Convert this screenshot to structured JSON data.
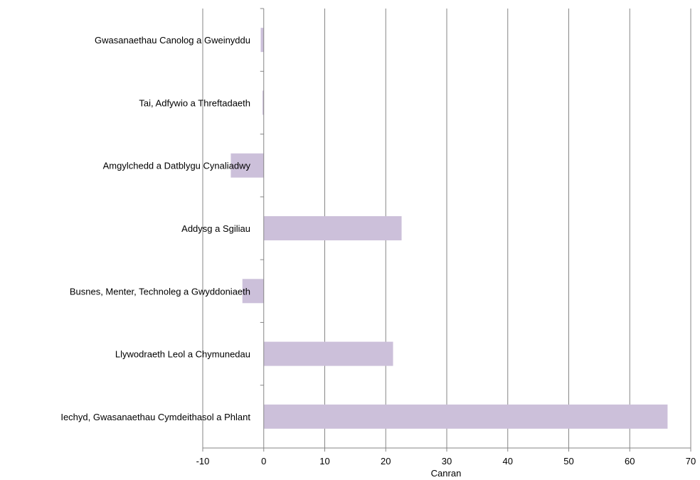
{
  "chart_data": {
    "type": "bar",
    "orientation": "horizontal",
    "categories": [
      "Gwasanaethau Canolog a Gweinyddu",
      "Tai, Adfywio a Threftadaeth",
      "Amgylchedd a Datblygu Cynaliadwy",
      "Addysg a Sgiliau",
      "Busnes, Menter, Technoleg a Gwyddoniaeth",
      "Llywodraeth Leol a Chymunedau",
      "Iechyd, Gwasanaethau Cymdeithasol a Phlant"
    ],
    "values": [
      -0.5,
      -0.2,
      -5.4,
      22.6,
      -3.5,
      21.2,
      66.2
    ],
    "xlabel": "Canran",
    "xlim": [
      -10,
      70
    ],
    "xticks": [
      -10,
      0,
      10,
      20,
      30,
      40,
      50,
      60,
      70
    ],
    "grid": "vertical",
    "colors": {
      "bar": "#ccc0da",
      "grid": "#868686",
      "axis": "#868686"
    }
  }
}
